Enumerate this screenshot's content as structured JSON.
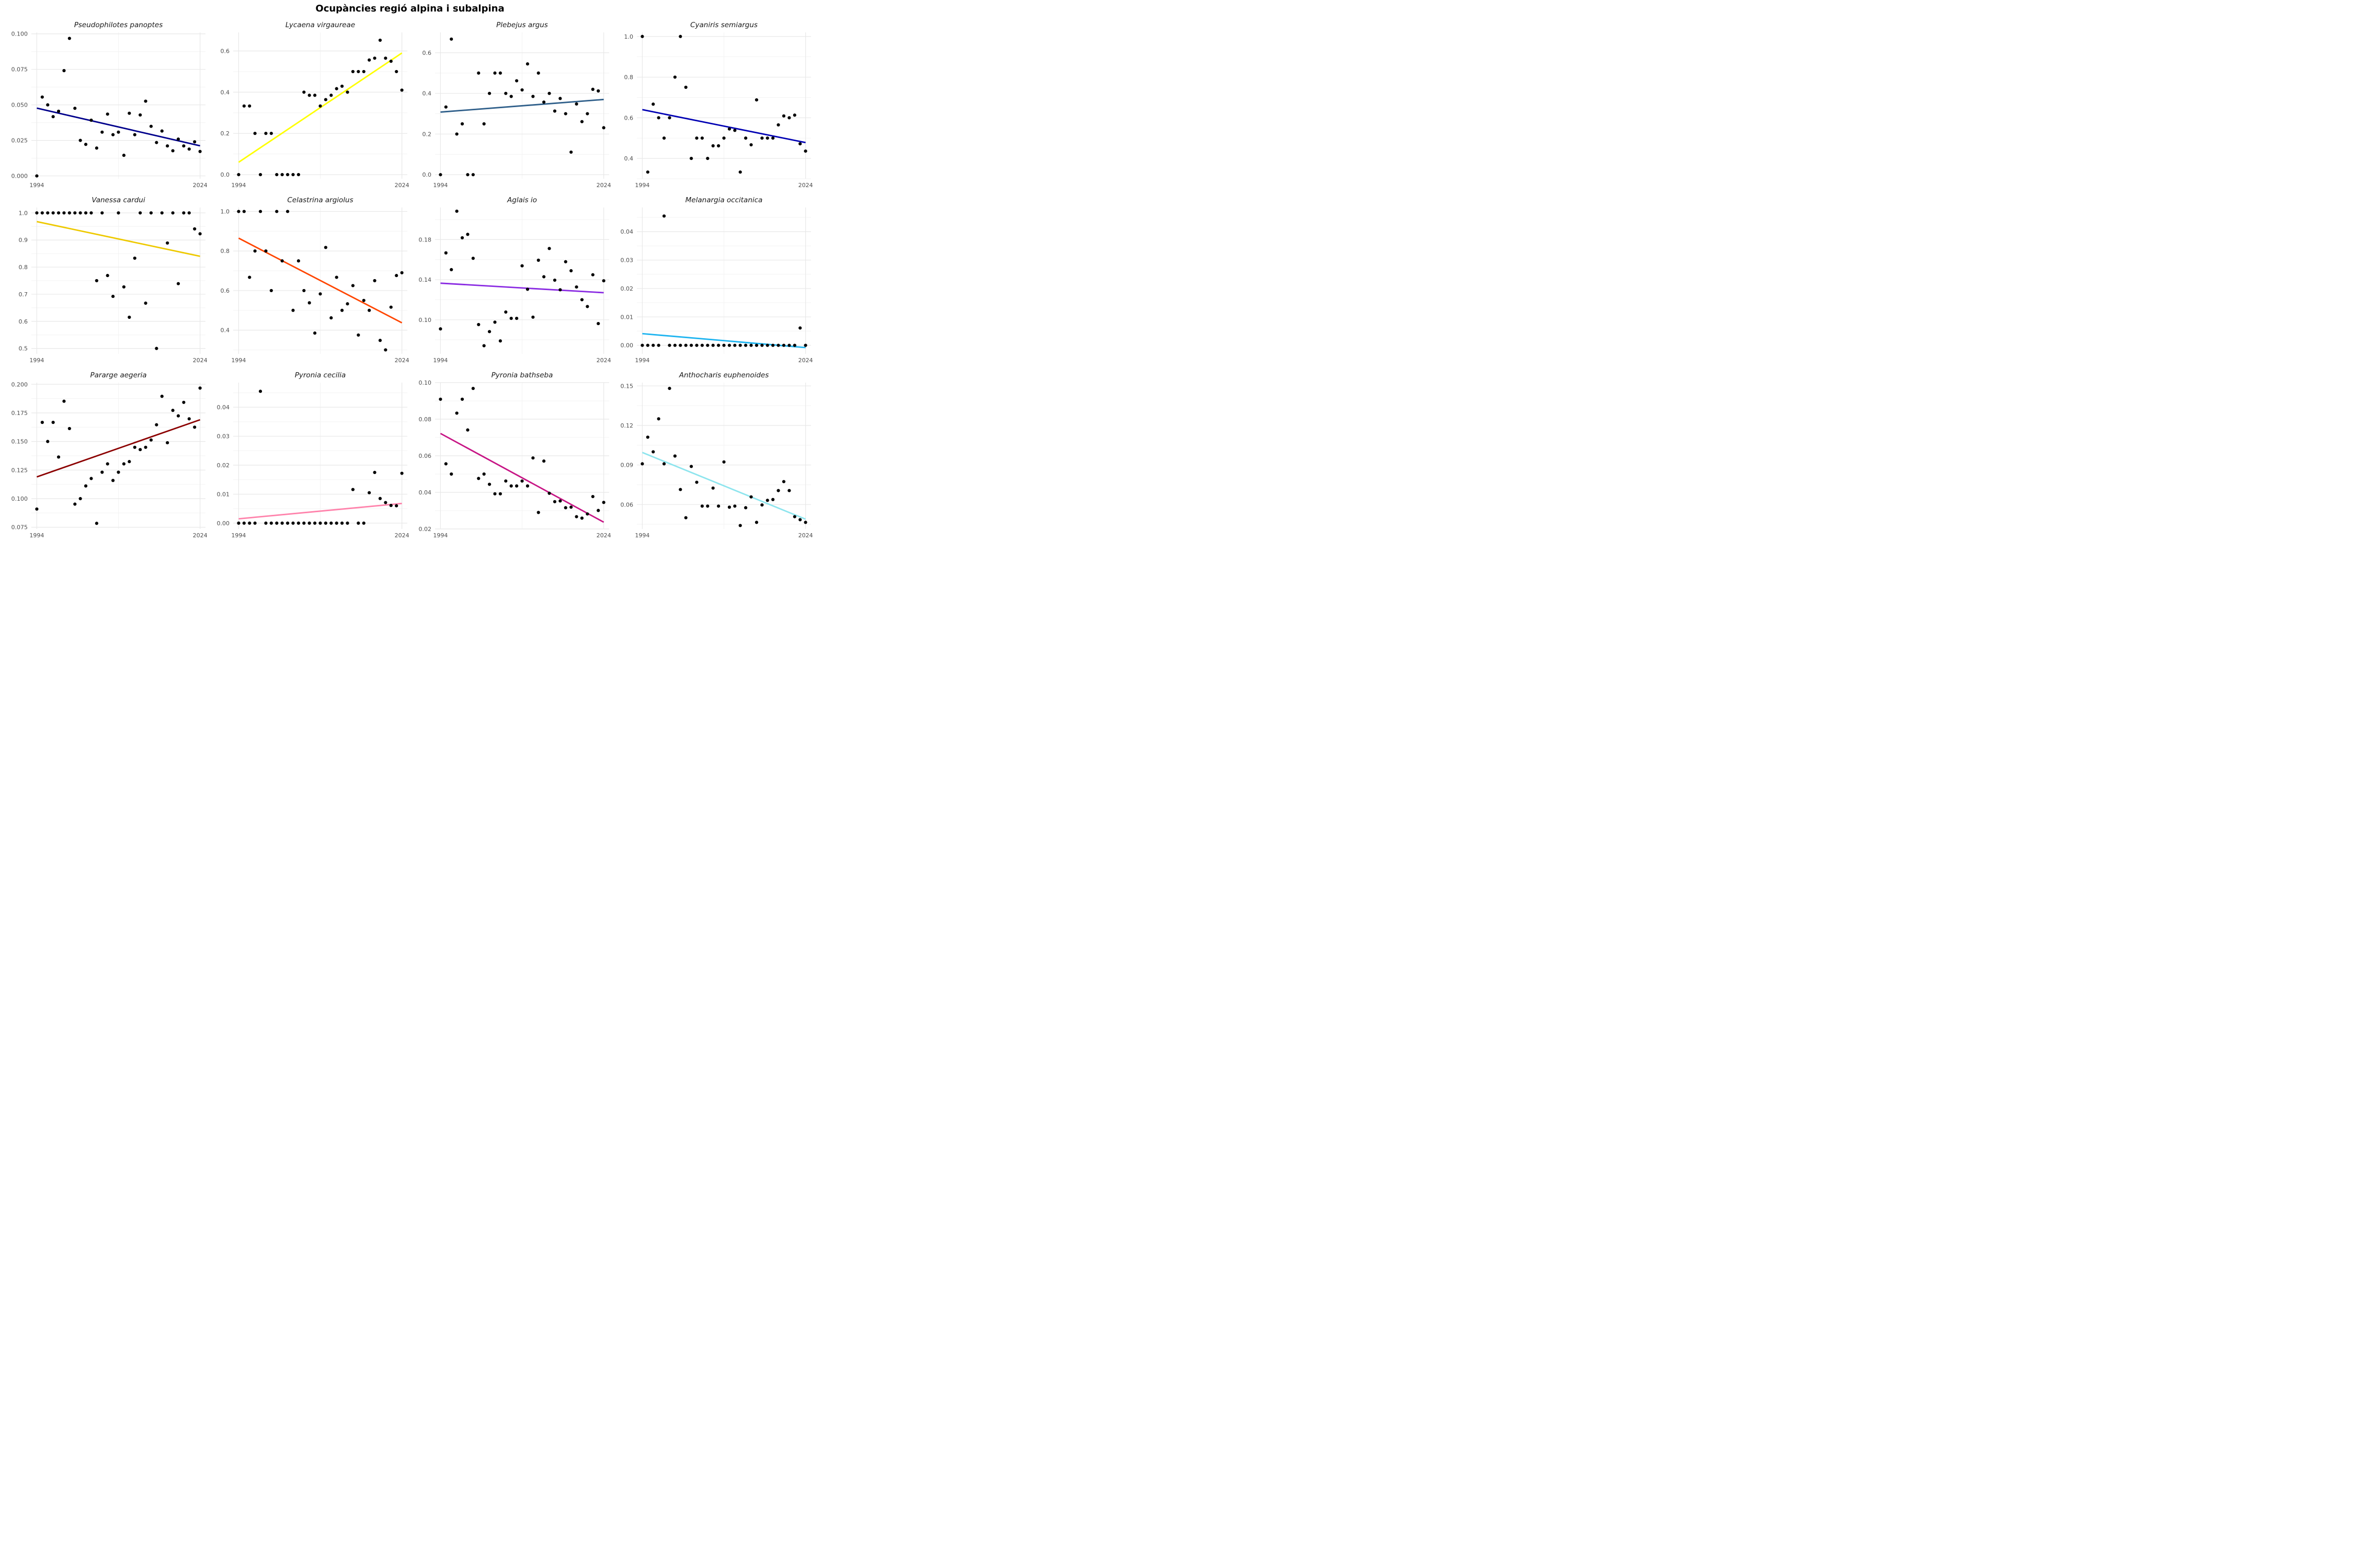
{
  "title": "Ocupàncies regió alpina i subalpina",
  "point_color": "#000000",
  "chart_data": [
    {
      "type": "scatter",
      "title": "Pseudophilotes panoptes",
      "line_color": "#00008B",
      "ylim": [
        -0.002,
        0.101
      ],
      "xlim": [
        1993,
        2025
      ],
      "xticks": [
        1994,
        2024
      ],
      "yticks": [
        0,
        0.025,
        0.05,
        0.075,
        0.1
      ],
      "ytick_labels": [
        "0.000",
        "0.025",
        "0.050",
        "0.075",
        "0.100"
      ],
      "trend": [
        0.0477,
        0.0212
      ],
      "x": [
        1994,
        1995,
        1996,
        1997,
        1998,
        1999,
        2000,
        2001,
        2002,
        2003,
        2004,
        2005,
        2006,
        2007,
        2008,
        2009,
        2010,
        2011,
        2012,
        2013,
        2014,
        2015,
        2016,
        2017,
        2018,
        2019,
        2020,
        2021,
        2022,
        2023,
        2024
      ],
      "y": [
        0.0,
        0.0555,
        0.05,
        0.0417,
        0.0455,
        0.0741,
        0.0968,
        0.0476,
        0.025,
        0.0222,
        0.0392,
        0.0196,
        0.0308,
        0.0435,
        0.029,
        0.0308,
        0.0145,
        0.0441,
        0.029,
        0.0429,
        0.0526,
        0.0349,
        0.0235,
        0.0316,
        0.0211,
        0.0177,
        0.0259,
        0.0211,
        0.0189,
        0.024,
        0.0172
      ]
    },
    {
      "type": "scatter",
      "title": "Lycaena virgaureae",
      "line_color": "#FFFF00",
      "ylim": [
        -0.02,
        0.69
      ],
      "xlim": [
        1993,
        2025
      ],
      "xticks": [
        1994,
        2024
      ],
      "yticks": [
        0,
        0.2,
        0.4,
        0.6
      ],
      "ytick_labels": [
        "0.0",
        "0.2",
        "0.4",
        "0.6"
      ],
      "trend": [
        0.06,
        0.59
      ],
      "x": [
        1994,
        1995,
        1996,
        1997,
        1998,
        1999,
        2000,
        2001,
        2002,
        2003,
        2004,
        2005,
        2006,
        2007,
        2008,
        2009,
        2010,
        2011,
        2012,
        2013,
        2014,
        2015,
        2016,
        2017,
        2018,
        2019,
        2020,
        2021,
        2022,
        2023,
        2024
      ],
      "y": [
        0.0,
        0.333,
        0.333,
        0.2,
        0.0,
        0.2,
        0.2,
        0.0,
        0.0,
        0.0,
        0.0,
        0.0,
        0.4,
        0.385,
        0.385,
        0.333,
        0.364,
        0.385,
        0.417,
        0.429,
        0.4,
        0.5,
        0.5,
        0.5,
        0.556,
        0.565,
        0.652,
        0.565,
        0.55,
        0.5,
        0.41
      ]
    },
    {
      "type": "scatter",
      "title": "Plebejus argus",
      "line_color": "#2F5F8A",
      "ylim": [
        -0.02,
        0.7
      ],
      "xlim": [
        1993,
        2025
      ],
      "xticks": [
        1994,
        2024
      ],
      "yticks": [
        0,
        0.2,
        0.4,
        0.6
      ],
      "ytick_labels": [
        "0.0",
        "0.2",
        "0.4",
        "0.6"
      ],
      "trend": [
        0.308,
        0.37
      ],
      "x": [
        1994,
        1995,
        1996,
        1997,
        1998,
        1999,
        2000,
        2001,
        2002,
        2003,
        2004,
        2005,
        2006,
        2007,
        2008,
        2009,
        2010,
        2011,
        2012,
        2013,
        2014,
        2015,
        2016,
        2017,
        2018,
        2019,
        2020,
        2021,
        2022,
        2023,
        2024
      ],
      "y": [
        0.0,
        0.333,
        0.667,
        0.2,
        0.25,
        0.0,
        0.0,
        0.5,
        0.25,
        0.4,
        0.5,
        0.5,
        0.4,
        0.385,
        0.462,
        0.417,
        0.545,
        0.385,
        0.5,
        0.357,
        0.4,
        0.313,
        0.375,
        0.3,
        0.111,
        0.348,
        0.261,
        0.3,
        0.42,
        0.412,
        0.231
      ]
    },
    {
      "type": "scatter",
      "title": "Cyaniris semiargus",
      "line_color": "#0000B3",
      "ylim": [
        0.3,
        1.02
      ],
      "xlim": [
        1993,
        2025
      ],
      "xticks": [
        1994,
        2024
      ],
      "yticks": [
        0.4,
        0.6,
        0.8,
        1.0
      ],
      "ytick_labels": [
        "0.4",
        "0.6",
        "0.8",
        "1.0"
      ],
      "trend": [
        0.64,
        0.478
      ],
      "x": [
        1994,
        1995,
        1996,
        1997,
        1998,
        1999,
        2000,
        2001,
        2002,
        2003,
        2004,
        2005,
        2006,
        2007,
        2008,
        2009,
        2010,
        2011,
        2012,
        2013,
        2014,
        2015,
        2016,
        2017,
        2018,
        2019,
        2020,
        2021,
        2022,
        2023,
        2024
      ],
      "y": [
        1.0,
        0.333,
        0.667,
        0.6,
        0.5,
        0.6,
        0.8,
        1.0,
        0.75,
        0.4,
        0.5,
        0.5,
        0.4,
        0.462,
        0.462,
        0.5,
        0.545,
        0.538,
        0.333,
        0.5,
        0.467,
        0.688,
        0.5,
        0.5,
        0.5,
        0.565,
        0.609,
        0.6,
        0.613,
        0.472,
        0.436
      ]
    },
    {
      "type": "scatter",
      "title": "Vanessa cardui",
      "line_color": "#EEC900",
      "ylim": [
        0.48,
        1.02
      ],
      "xlim": [
        1993,
        2025
      ],
      "xticks": [
        1994,
        2024
      ],
      "yticks": [
        0.5,
        0.6,
        0.7,
        0.8,
        0.9,
        1.0
      ],
      "ytick_labels": [
        "0.5",
        "0.6",
        "0.7",
        "0.8",
        "0.9",
        "1.0"
      ],
      "trend": [
        0.968,
        0.84
      ],
      "x": [
        1994,
        1995,
        1996,
        1997,
        1998,
        1999,
        2000,
        2001,
        2002,
        2003,
        2004,
        2005,
        2006,
        2007,
        2008,
        2009,
        2010,
        2011,
        2012,
        2013,
        2014,
        2015,
        2016,
        2017,
        2018,
        2019,
        2020,
        2021,
        2022,
        2023,
        2024
      ],
      "y": [
        1.0,
        1.0,
        1.0,
        1.0,
        1.0,
        1.0,
        1.0,
        1.0,
        1.0,
        1.0,
        1.0,
        0.75,
        1.0,
        0.769,
        0.692,
        1.0,
        0.727,
        0.615,
        0.833,
        1.0,
        0.667,
        1.0,
        0.5,
        1.0,
        0.889,
        1.0,
        0.739,
        1.0,
        1.0,
        0.941,
        0.923
      ]
    },
    {
      "type": "scatter",
      "title": "Celastrina argiolus",
      "line_color": "#FF4500",
      "ylim": [
        0.28,
        1.02
      ],
      "xlim": [
        1993,
        2025
      ],
      "xticks": [
        1994,
        2024
      ],
      "yticks": [
        0.4,
        0.6,
        0.8,
        1.0
      ],
      "ytick_labels": [
        "0.4",
        "0.6",
        "0.8",
        "1.0"
      ],
      "trend": [
        0.865,
        0.437
      ],
      "x": [
        1994,
        1995,
        1996,
        1997,
        1998,
        1999,
        2000,
        2001,
        2002,
        2003,
        2004,
        2005,
        2006,
        2007,
        2008,
        2009,
        2010,
        2011,
        2012,
        2013,
        2014,
        2015,
        2016,
        2017,
        2018,
        2019,
        2020,
        2021,
        2022,
        2023,
        2024
      ],
      "y": [
        1.0,
        1.0,
        0.667,
        0.8,
        1.0,
        0.8,
        0.6,
        1.0,
        0.75,
        1.0,
        0.5,
        0.75,
        0.6,
        0.538,
        0.385,
        0.583,
        0.818,
        0.462,
        0.667,
        0.5,
        0.533,
        0.625,
        0.375,
        0.55,
        0.5,
        0.65,
        0.348,
        0.3,
        0.516,
        0.676,
        0.69
      ]
    },
    {
      "type": "scatter",
      "title": "Aglais io",
      "line_color": "#8A2BE2",
      "ylim": [
        0.066,
        0.212
      ],
      "xlim": [
        1993,
        2025
      ],
      "xticks": [
        1994,
        2024
      ],
      "yticks": [
        0.1,
        0.14,
        0.18
      ],
      "ytick_labels": [
        "0.10",
        "0.14",
        "0.18"
      ],
      "trend": [
        0.1365,
        0.127
      ],
      "x": [
        1994,
        1995,
        1996,
        1997,
        1998,
        1999,
        2000,
        2001,
        2002,
        2003,
        2004,
        2005,
        2006,
        2007,
        2008,
        2009,
        2010,
        2011,
        2012,
        2013,
        2014,
        2015,
        2016,
        2017,
        2018,
        2019,
        2020,
        2021,
        2022,
        2023,
        2024
      ],
      "y": [
        0.0909,
        0.1667,
        0.15,
        0.2083,
        0.1818,
        0.1852,
        0.1613,
        0.0952,
        0.0741,
        0.0882,
        0.0976,
        0.0789,
        0.1077,
        0.1014,
        0.1014,
        0.1538,
        0.1304,
        0.1026,
        0.1594,
        0.1429,
        0.1711,
        0.1395,
        0.1299,
        0.1579,
        0.1489,
        0.1327,
        0.12,
        0.1132,
        0.1449,
        0.0962,
        0.1389
      ]
    },
    {
      "type": "scatter",
      "title": "Melanargia occitanica",
      "line_color": "#1EB4F0",
      "ylim": [
        -0.003,
        0.0485
      ],
      "xlim": [
        1993,
        2025
      ],
      "xticks": [
        1994,
        2024
      ],
      "yticks": [
        0,
        0.01,
        0.02,
        0.03,
        0.04
      ],
      "ytick_labels": [
        "0.00",
        "0.01",
        "0.02",
        "0.03",
        "0.04"
      ],
      "trend": [
        0.0041,
        -0.0008
      ],
      "x": [
        1994,
        1995,
        1996,
        1997,
        1998,
        1999,
        2000,
        2001,
        2002,
        2003,
        2004,
        2005,
        2006,
        2007,
        2008,
        2009,
        2010,
        2011,
        2012,
        2013,
        2014,
        2015,
        2016,
        2017,
        2018,
        2019,
        2020,
        2021,
        2022,
        2023,
        2024
      ],
      "y": [
        0.0,
        0.0,
        0.0,
        0.0,
        0.0455,
        0.0,
        0.0,
        0.0,
        0.0,
        0.0,
        0.0,
        0.0,
        0.0,
        0.0,
        0.0,
        0.0,
        0.0,
        0.0,
        0.0,
        0.0,
        0.0,
        0.0,
        0.0,
        0.0,
        0.0,
        0.0,
        0.0,
        0.0,
        0.0,
        0.0061,
        0.0
      ]
    },
    {
      "type": "scatter",
      "title": "Pararge aegeria",
      "line_color": "#8B0000",
      "ylim": [
        0.0735,
        0.2015
      ],
      "xlim": [
        1993,
        2025
      ],
      "xticks": [
        1994,
        2024
      ],
      "yticks": [
        0.075,
        0.1,
        0.125,
        0.15,
        0.175,
        0.2
      ],
      "ytick_labels": [
        "0.075",
        "0.100",
        "0.125",
        "0.150",
        "0.175",
        "0.200"
      ],
      "trend": [
        0.119,
        0.169
      ],
      "x": [
        1994,
        1995,
        1996,
        1997,
        1998,
        1999,
        2000,
        2001,
        2002,
        2003,
        2004,
        2005,
        2006,
        2007,
        2008,
        2009,
        2010,
        2011,
        2012,
        2013,
        2014,
        2015,
        2016,
        2017,
        2018,
        2019,
        2020,
        2021,
        2022,
        2023,
        2024
      ],
      "y": [
        0.0909,
        0.1667,
        0.15,
        0.1667,
        0.1364,
        0.1852,
        0.1613,
        0.0952,
        0.1,
        0.1111,
        0.1176,
        0.0784,
        0.1231,
        0.1304,
        0.1159,
        0.1231,
        0.1304,
        0.1324,
        0.1449,
        0.1429,
        0.1449,
        0.1513,
        0.1646,
        0.1895,
        0.1489,
        0.1772,
        0.1724,
        0.1842,
        0.1698,
        0.1625,
        0.1967
      ]
    },
    {
      "type": "scatter",
      "title": "Pyronia cecilia",
      "line_color": "#FF82AB",
      "ylim": [
        -0.002,
        0.0485
      ],
      "xlim": [
        1993,
        2025
      ],
      "xticks": [
        1994,
        2024
      ],
      "yticks": [
        0,
        0.01,
        0.02,
        0.03,
        0.04
      ],
      "ytick_labels": [
        "0.00",
        "0.01",
        "0.02",
        "0.03",
        "0.04"
      ],
      "trend": [
        0.0015,
        0.0068
      ],
      "x": [
        1994,
        1995,
        1996,
        1997,
        1998,
        1999,
        2000,
        2001,
        2002,
        2003,
        2004,
        2005,
        2006,
        2007,
        2008,
        2009,
        2010,
        2011,
        2012,
        2013,
        2014,
        2015,
        2016,
        2017,
        2018,
        2019,
        2020,
        2021,
        2022,
        2023,
        2024
      ],
      "y": [
        0.0,
        0.0,
        0.0,
        0.0,
        0.0455,
        0.0,
        0.0,
        0.0,
        0.0,
        0.0,
        0.0,
        0.0,
        0.0,
        0.0,
        0.0,
        0.0,
        0.0,
        0.0,
        0.0,
        0.0,
        0.0,
        0.0116,
        0.0,
        0.0,
        0.0105,
        0.0175,
        0.0085,
        0.0071,
        0.0061,
        0.006,
        0.0172
      ]
    },
    {
      "type": "scatter",
      "title": "Pyronia bathseba",
      "line_color": "#C71585",
      "ylim": [
        0.02,
        0.1
      ],
      "xlim": [
        1993,
        2025
      ],
      "xticks": [
        1994,
        2024
      ],
      "yticks": [
        0.02,
        0.04,
        0.06,
        0.08,
        0.1
      ],
      "ytick_labels": [
        "0.02",
        "0.04",
        "0.06",
        "0.08",
        "0.10"
      ],
      "trend": [
        0.0722,
        0.0237
      ],
      "x": [
        1994,
        1995,
        1996,
        1997,
        1998,
        1999,
        2000,
        2001,
        2002,
        2003,
        2004,
        2005,
        2006,
        2007,
        2008,
        2009,
        2010,
        2011,
        2012,
        2013,
        2014,
        2015,
        2016,
        2017,
        2018,
        2019,
        2020,
        2021,
        2022,
        2023,
        2024
      ],
      "y": [
        0.0909,
        0.0556,
        0.05,
        0.0833,
        0.0909,
        0.0741,
        0.0968,
        0.0476,
        0.05,
        0.0444,
        0.0392,
        0.0392,
        0.0462,
        0.0435,
        0.0435,
        0.0462,
        0.0435,
        0.0588,
        0.029,
        0.0571,
        0.0395,
        0.0349,
        0.0353,
        0.0316,
        0.0319,
        0.0267,
        0.0259,
        0.0282,
        0.0377,
        0.0301,
        0.0345
      ]
    },
    {
      "type": "scatter",
      "title": "Anthocharis euphenoides",
      "line_color": "#8EE5EE",
      "ylim": [
        0.0415,
        0.1525
      ],
      "xlim": [
        1993,
        2025
      ],
      "xticks": [
        1994,
        2024
      ],
      "yticks": [
        0.06,
        0.09,
        0.12,
        0.15
      ],
      "ytick_labels": [
        "0.06",
        "0.09",
        "0.12",
        "0.15"
      ],
      "trend": [
        0.0995,
        0.0489
      ],
      "x": [
        1994,
        1995,
        1996,
        1997,
        1998,
        1999,
        2000,
        2001,
        2002,
        2003,
        2004,
        2005,
        2006,
        2007,
        2008,
        2009,
        2010,
        2011,
        2012,
        2013,
        2014,
        2015,
        2016,
        2017,
        2018,
        2019,
        2020,
        2021,
        2022,
        2023,
        2024
      ],
      "y": [
        0.0909,
        0.1111,
        0.1,
        0.125,
        0.0909,
        0.1481,
        0.0968,
        0.0714,
        0.05,
        0.0889,
        0.0769,
        0.0588,
        0.0588,
        0.0725,
        0.0588,
        0.0923,
        0.058,
        0.0588,
        0.0441,
        0.0576,
        0.0658,
        0.0465,
        0.0597,
        0.0632,
        0.0638,
        0.0706,
        0.0774,
        0.0706,
        0.0508,
        0.0485,
        0.0465
      ]
    }
  ]
}
